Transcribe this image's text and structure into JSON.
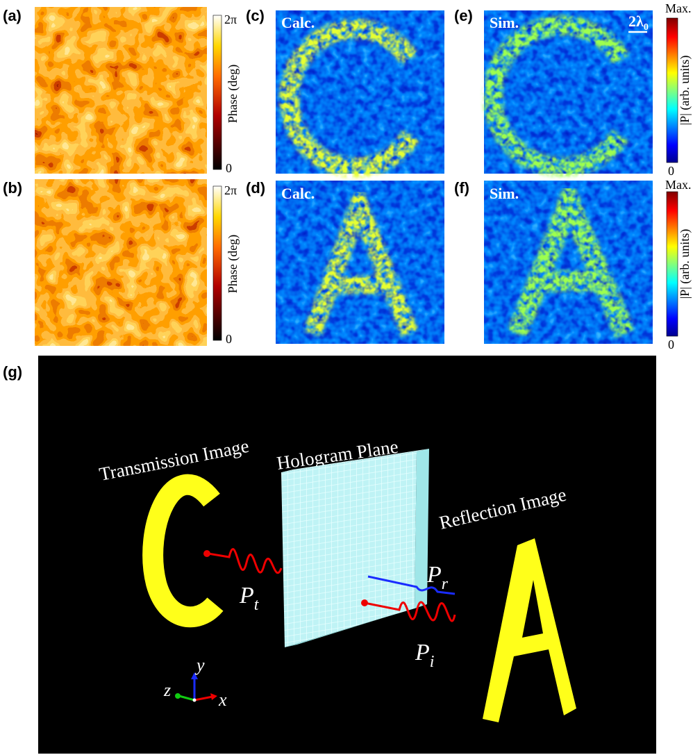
{
  "panels": {
    "a": {
      "label": "(a)"
    },
    "b": {
      "label": "(b)"
    },
    "c": {
      "label": "(c)",
      "tag": "Calc."
    },
    "d": {
      "label": "(d)",
      "tag": "Calc."
    },
    "e": {
      "label": "(e)",
      "tag": "Sim.",
      "scale_bar": {
        "main": "2λ",
        "sub": "0"
      }
    },
    "f": {
      "label": "(f)",
      "tag": "Sim."
    },
    "g": {
      "label": "(g)"
    }
  },
  "phase_colorbars": [
    {
      "max": "2π",
      "min": "0",
      "label": "Phase (deg)"
    },
    {
      "max": "2π",
      "min": "0",
      "label": "Phase (deg)"
    }
  ],
  "amplitude_colorbars": [
    {
      "max": "Max.",
      "min": "0",
      "label": "|P| (arb. units)"
    },
    {
      "max": "Max.",
      "min": "0",
      "label": "|P| (arb. units)"
    }
  ],
  "schematic": {
    "transmission": "Transmission Image",
    "hologram": "Hologram Plane",
    "reflection": "Reflection Image",
    "pt": {
      "main": "P",
      "sub": "t"
    },
    "pr": {
      "main": "P",
      "sub": "r"
    },
    "pi": {
      "main": "P",
      "sub": "i"
    },
    "axes": {
      "x": "x",
      "y": "y",
      "z": "z"
    }
  }
}
